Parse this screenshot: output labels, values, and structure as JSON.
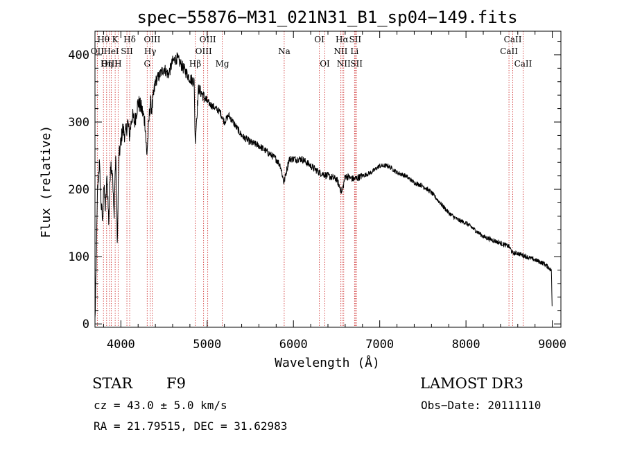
{
  "chart_data": {
    "type": "line",
    "title": "spec−55876−M31_021N31_B1_sp04−149.fits",
    "xlabel": "Wavelength (Å)",
    "ylabel": "Flux (relative)",
    "xlim": [
      3700,
      9100
    ],
    "ylim": [
      -5,
      435
    ],
    "xticks": [
      4000,
      5000,
      6000,
      7000,
      8000,
      9000
    ],
    "xtick_labels": [
      "4000",
      "5000",
      "6000",
      "7000",
      "8000",
      "9000"
    ],
    "yticks": [
      0,
      100,
      200,
      300,
      400
    ],
    "ytick_labels": [
      "0",
      "100",
      "200",
      "300",
      "400"
    ],
    "grid": false,
    "series": [
      {
        "name": "flux",
        "x": [
          3700,
          3710,
          3730,
          3750,
          3770,
          3790,
          3800,
          3820,
          3840,
          3860,
          3880,
          3900,
          3920,
          3940,
          3960,
          3970,
          3980,
          4000,
          4020,
          4050,
          4080,
          4100,
          4130,
          4160,
          4200,
          4240,
          4280,
          4300,
          4320,
          4340,
          4360,
          4400,
          4450,
          4500,
          4550,
          4600,
          4650,
          4700,
          4750,
          4800,
          4850,
          4861,
          4900,
          4950,
          5000,
          5050,
          5100,
          5150,
          5200,
          5250,
          5300,
          5400,
          5500,
          5600,
          5700,
          5800,
          5850,
          5890,
          5950,
          6000,
          6100,
          6200,
          6300,
          6400,
          6500,
          6563,
          6600,
          6700,
          6800,
          6900,
          7000,
          7100,
          7200,
          7300,
          7400,
          7500,
          7600,
          7700,
          7800,
          7900,
          8000,
          8100,
          8200,
          8300,
          8400,
          8500,
          8542,
          8600,
          8700,
          8800,
          8900,
          8990,
          9000
        ],
        "y": [
          5,
          60,
          200,
          240,
          180,
          150,
          210,
          170,
          220,
          150,
          240,
          230,
          160,
          250,
          120,
          200,
          250,
          270,
          290,
          280,
          300,
          280,
          310,
          300,
          330,
          320,
          300,
          250,
          290,
          330,
          320,
          360,
          370,
          380,
          370,
          390,
          395,
          385,
          375,
          365,
          360,
          270,
          350,
          340,
          330,
          325,
          320,
          315,
          300,
          310,
          300,
          280,
          270,
          265,
          255,
          245,
          235,
          210,
          245,
          245,
          245,
          235,
          225,
          220,
          215,
          195,
          220,
          215,
          220,
          225,
          235,
          235,
          225,
          220,
          210,
          205,
          195,
          180,
          165,
          155,
          150,
          140,
          130,
          125,
          120,
          115,
          105,
          105,
          100,
          95,
          90,
          80,
          10
        ]
      }
    ],
    "spectral_lines": [
      {
        "name": "Hθ",
        "wavelength": 3798,
        "row": 1
      },
      {
        "name": "OII",
        "wavelength": 3727,
        "row": 2
      },
      {
        "name": "OIII",
        "wavelength": 3869,
        "row": 3
      },
      {
        "name": "K",
        "wavelength": 3934,
        "row": 1
      },
      {
        "name": "HeI",
        "wavelength": 3889,
        "row": 2
      },
      {
        "name": "Hη",
        "wavelength": 3835,
        "row": 3
      },
      {
        "name": "SII",
        "wavelength": 4070,
        "row": 2
      },
      {
        "name": "H",
        "wavelength": 3968,
        "row": 3
      },
      {
        "name": "Hδ",
        "wavelength": 4102,
        "row": 1
      },
      {
        "name": "OIII",
        "wavelength": 4363,
        "row": 1
      },
      {
        "name": "Hγ",
        "wavelength": 4340,
        "row": 2
      },
      {
        "name": "G",
        "wavelength": 4305,
        "row": 3
      },
      {
        "name": "Hβ",
        "wavelength": 4861,
        "row": 3
      },
      {
        "name": "OIII",
        "wavelength": 4959,
        "row": 2
      },
      {
        "name": "OIII",
        "wavelength": 5007,
        "row": 1
      },
      {
        "name": "Mg",
        "wavelength": 5175,
        "row": 3
      },
      {
        "name": "Na",
        "wavelength": 5893,
        "row": 2
      },
      {
        "name": "OI",
        "wavelength": 6300,
        "row": 1
      },
      {
        "name": "OI",
        "wavelength": 6364,
        "row": 3
      },
      {
        "name": "Hα",
        "wavelength": 6563,
        "row": 1
      },
      {
        "name": "NII",
        "wavelength": 6548,
        "row": 2
      },
      {
        "name": "NII",
        "wavelength": 6583,
        "row": 3
      },
      {
        "name": "SII",
        "wavelength": 6716,
        "row": 1
      },
      {
        "name": "Li",
        "wavelength": 6708,
        "row": 2
      },
      {
        "name": "SII",
        "wavelength": 6731,
        "row": 3
      },
      {
        "name": "CaII",
        "wavelength": 8542,
        "row": 1
      },
      {
        "name": "CaII",
        "wavelength": 8498,
        "row": 2
      },
      {
        "name": "CaII",
        "wavelength": 8662,
        "row": 3
      }
    ]
  },
  "info": {
    "class_label": "STAR",
    "subclass": "F9",
    "survey": "LAMOST DR3",
    "redshift": "cz = 43.0 ± 5.0 km/s",
    "obs_date": "Obs−Date: 20111110",
    "coords": "RA =  21.79515, DEC =  31.62983"
  }
}
